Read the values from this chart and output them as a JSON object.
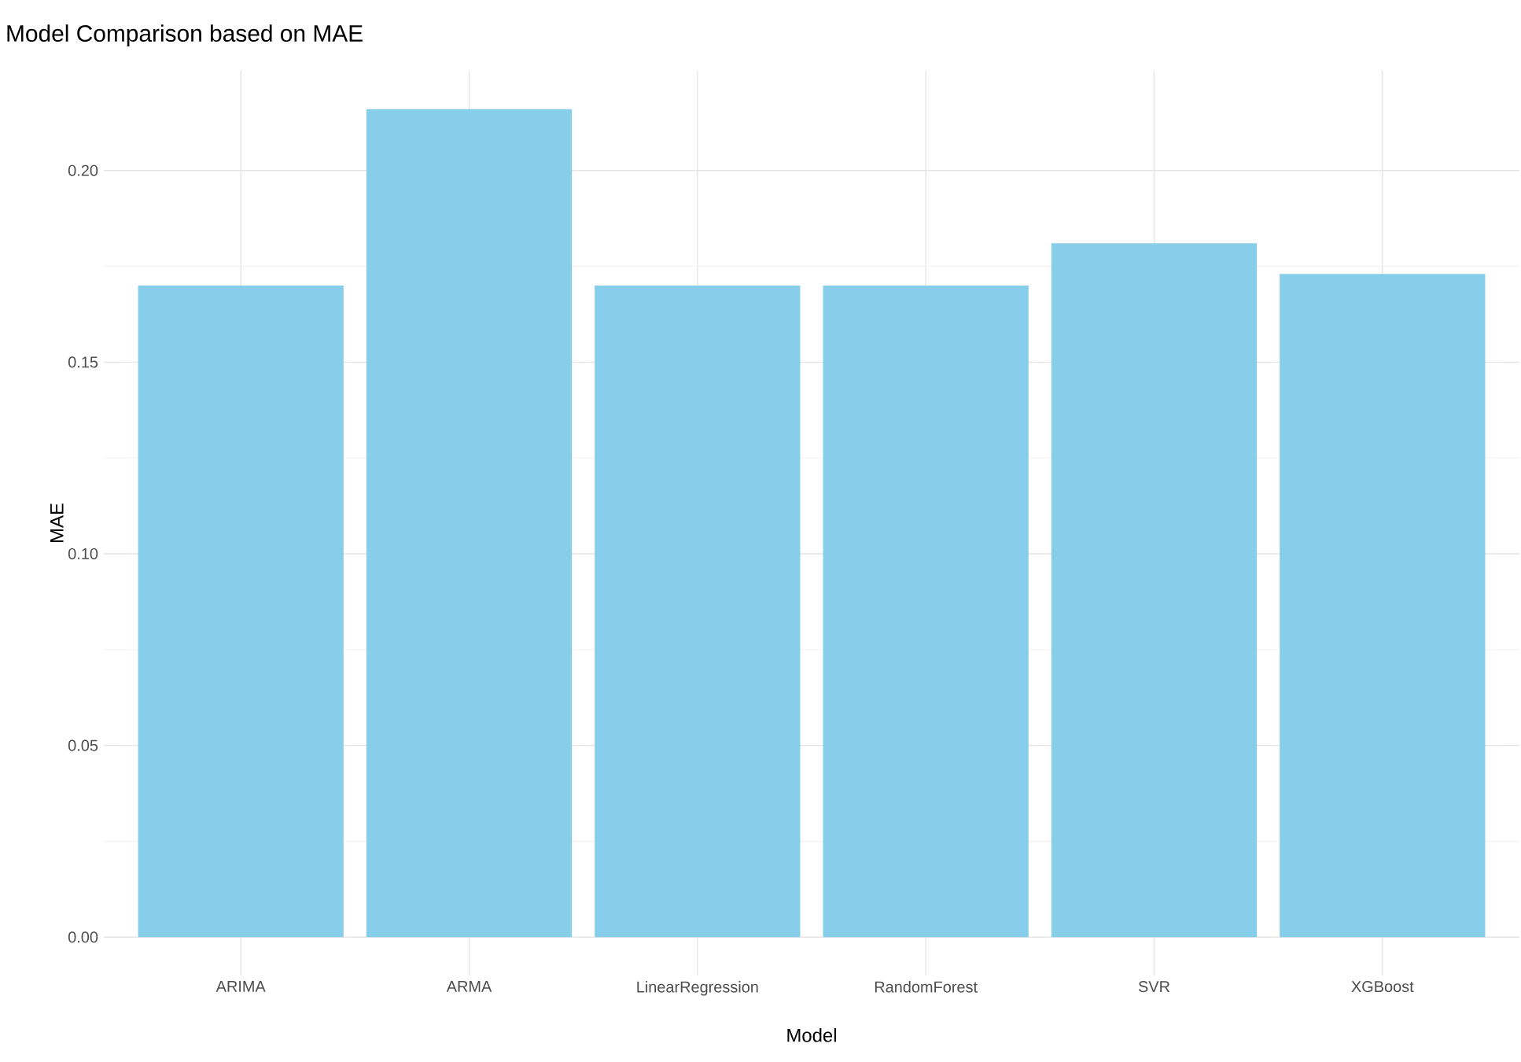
{
  "chart_data": {
    "type": "bar",
    "title": "Model Comparison based on MAE",
    "xlabel": "Model",
    "ylabel": "MAE",
    "categories": [
      "ARIMA",
      "ARMA",
      "LinearRegression",
      "RandomForest",
      "SVR",
      "XGBoost"
    ],
    "values": [
      0.17,
      0.216,
      0.17,
      0.17,
      0.181,
      0.173
    ],
    "color": "#87ceeb",
    "ylim": [
      -0.01,
      0.226
    ],
    "yticks": [
      {
        "value": 0,
        "label": "0.00"
      },
      {
        "value": 0.05,
        "label": "0.05"
      },
      {
        "value": 0.1,
        "label": "0.10"
      },
      {
        "value": 0.15,
        "label": "0.15"
      },
      {
        "value": 0.2,
        "label": "0.20"
      }
    ],
    "grid": true
  }
}
